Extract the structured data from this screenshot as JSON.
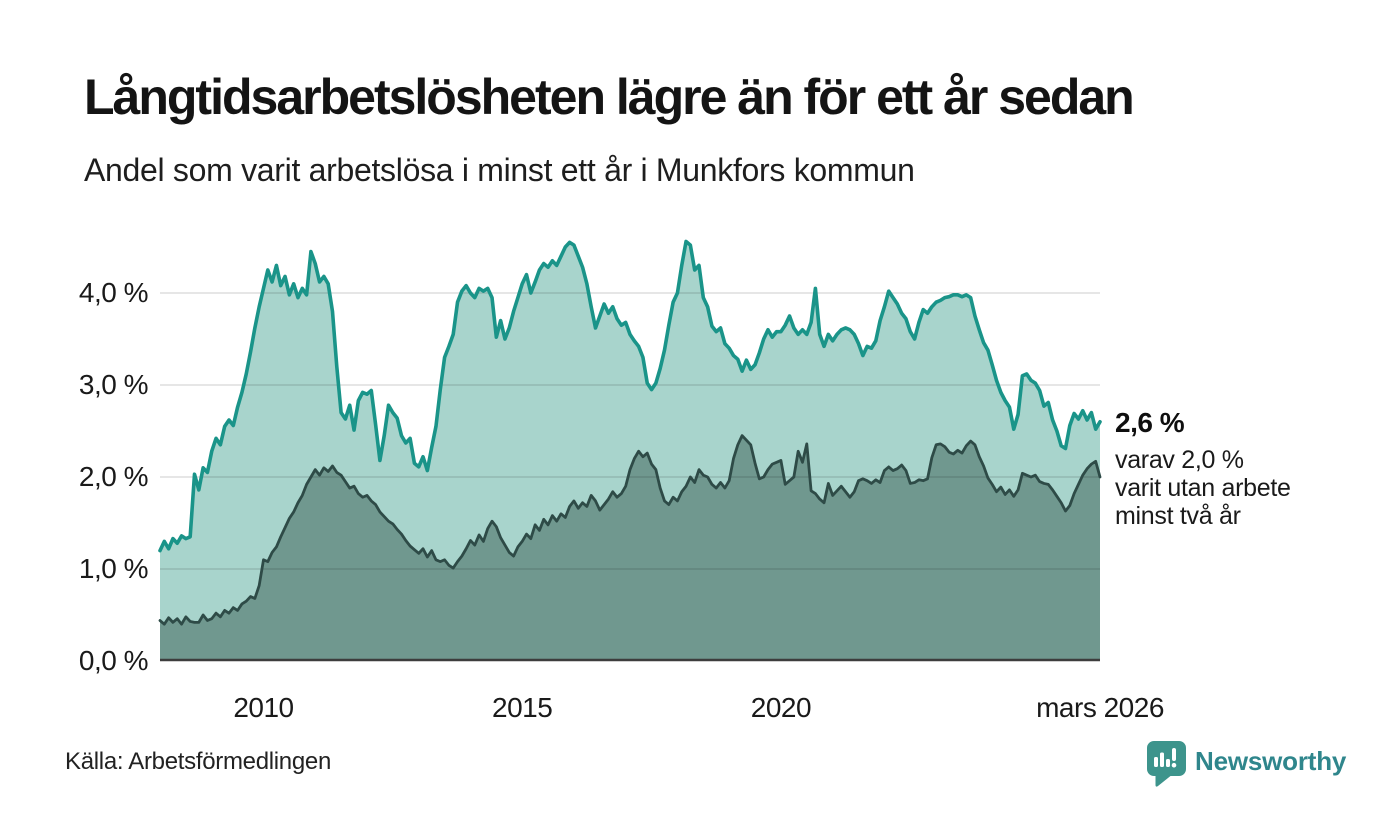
{
  "header": {
    "title": "Långtidsarbetslösheten lägre än för ett år sedan",
    "subtitle": "Andel som varit arbetslösa i minst ett år i Munkfors kommun"
  },
  "annotation": {
    "value": "2,6 %",
    "line1": "varav 2,0 %",
    "line2": "varit utan arbete",
    "line3": "minst två år"
  },
  "footer": {
    "source": "Källa: Arbetsförmedlingen",
    "brand": "Newsworthy",
    "brand_color": "#2f868c",
    "brand_icon": "newsworthy-speech-bubble-bar-chart-icon",
    "brand_icon_color": "#3d948c"
  },
  "chart_data": {
    "type": "area",
    "title": "Långtidsarbetslösheten lägre än för ett år sedan",
    "subtitle": "Andel som varit arbetslösa i minst ett år i Munkfors kommun",
    "unit": "%",
    "x_start": "2008-01",
    "x_end": "2026-03",
    "x_step": "monthly",
    "grid": true,
    "ylim": [
      0,
      4.7
    ],
    "y_ticks": [
      "0,0 %",
      "1,0 %",
      "2,0 %",
      "3,0 %",
      "4,0 %"
    ],
    "x_ticks": [
      {
        "label": "2010",
        "month_index": 24
      },
      {
        "label": "2015",
        "month_index": 84
      },
      {
        "label": "2020",
        "month_index": 144
      },
      {
        "label": "mars 2026",
        "month_index": 218
      }
    ],
    "grid_color": "rgba(0,0,0,0.13)",
    "baseline_color": "#3d3d3d",
    "series": [
      {
        "name": "Arbetslösa minst ett år",
        "line_color": "#1a9489",
        "fill_color": "#a8d4cc",
        "end_value": 2.6,
        "values": [
          1.2,
          1.3,
          1.22,
          1.33,
          1.28,
          1.36,
          1.33,
          1.35,
          2.03,
          1.86,
          2.1,
          2.05,
          2.28,
          2.42,
          2.35,
          2.55,
          2.62,
          2.56,
          2.76,
          2.92,
          3.12,
          3.36,
          3.62,
          3.85,
          4.05,
          4.25,
          4.12,
          4.3,
          4.08,
          4.18,
          3.98,
          4.1,
          3.95,
          4.05,
          3.98,
          4.45,
          4.32,
          4.12,
          4.18,
          4.1,
          3.8,
          3.2,
          2.7,
          2.63,
          2.78,
          2.51,
          2.83,
          2.92,
          2.9,
          2.94,
          2.57,
          2.18,
          2.45,
          2.78,
          2.7,
          2.64,
          2.45,
          2.37,
          2.42,
          2.15,
          2.11,
          2.22,
          2.07,
          2.32,
          2.55,
          2.95,
          3.3,
          3.42,
          3.55,
          3.9,
          4.02,
          4.08,
          4.0,
          3.95,
          4.05,
          4.02,
          4.05,
          3.95,
          3.52,
          3.7,
          3.5,
          3.62,
          3.8,
          3.95,
          4.1,
          4.2,
          4.0,
          4.12,
          4.25,
          4.32,
          4.28,
          4.35,
          4.3,
          4.4,
          4.5,
          4.55,
          4.52,
          4.4,
          4.28,
          4.1,
          3.85,
          3.62,
          3.75,
          3.88,
          3.78,
          3.85,
          3.72,
          3.65,
          3.68,
          3.55,
          3.48,
          3.42,
          3.3,
          3.02,
          2.95,
          3.02,
          3.18,
          3.38,
          3.65,
          3.9,
          4.0,
          4.3,
          4.56,
          4.52,
          4.25,
          4.3,
          3.95,
          3.85,
          3.64,
          3.58,
          3.62,
          3.45,
          3.4,
          3.32,
          3.28,
          3.15,
          3.27,
          3.17,
          3.22,
          3.35,
          3.5,
          3.6,
          3.52,
          3.58,
          3.58,
          3.65,
          3.75,
          3.62,
          3.55,
          3.6,
          3.55,
          3.68,
          4.05,
          3.55,
          3.42,
          3.55,
          3.48,
          3.55,
          3.6,
          3.62,
          3.6,
          3.55,
          3.45,
          3.32,
          3.42,
          3.4,
          3.48,
          3.7,
          3.85,
          4.02,
          3.95,
          3.88,
          3.78,
          3.72,
          3.58,
          3.5,
          3.68,
          3.82,
          3.78,
          3.85,
          3.9,
          3.92,
          3.95,
          3.96,
          3.98,
          3.98,
          3.96,
          3.98,
          3.95,
          3.75,
          3.6,
          3.46,
          3.38,
          3.22,
          3.05,
          2.92,
          2.83,
          2.76,
          2.52,
          2.68,
          3.1,
          3.12,
          3.05,
          3.02,
          2.94,
          2.77,
          2.81,
          2.62,
          2.5,
          2.34,
          2.31,
          2.56,
          2.69,
          2.63,
          2.72,
          2.62,
          2.7,
          2.52,
          2.6
        ]
      },
      {
        "name": "Varav utan arbete minst två år",
        "line_color": "#2e4b47",
        "fill_color": "#70988f",
        "end_value": 2.0,
        "values": [
          0.44,
          0.4,
          0.47,
          0.42,
          0.46,
          0.4,
          0.48,
          0.43,
          0.42,
          0.42,
          0.5,
          0.44,
          0.46,
          0.52,
          0.48,
          0.55,
          0.52,
          0.58,
          0.55,
          0.62,
          0.65,
          0.7,
          0.68,
          0.82,
          1.1,
          1.08,
          1.18,
          1.24,
          1.35,
          1.45,
          1.55,
          1.62,
          1.72,
          1.8,
          1.92,
          2.0,
          2.08,
          2.02,
          2.1,
          2.06,
          2.12,
          2.05,
          2.02,
          1.95,
          1.88,
          1.9,
          1.82,
          1.78,
          1.8,
          1.74,
          1.7,
          1.62,
          1.57,
          1.52,
          1.49,
          1.43,
          1.38,
          1.31,
          1.25,
          1.21,
          1.17,
          1.22,
          1.13,
          1.2,
          1.1,
          1.08,
          1.1,
          1.04,
          1.01,
          1.08,
          1.14,
          1.22,
          1.31,
          1.26,
          1.37,
          1.3,
          1.44,
          1.52,
          1.46,
          1.34,
          1.26,
          1.18,
          1.14,
          1.24,
          1.3,
          1.38,
          1.33,
          1.48,
          1.42,
          1.54,
          1.48,
          1.58,
          1.52,
          1.6,
          1.56,
          1.68,
          1.74,
          1.66,
          1.72,
          1.68,
          1.8,
          1.74,
          1.64,
          1.7,
          1.76,
          1.84,
          1.78,
          1.82,
          1.9,
          2.08,
          2.2,
          2.28,
          2.22,
          2.26,
          2.14,
          2.08,
          1.88,
          1.74,
          1.7,
          1.78,
          1.74,
          1.84,
          1.9,
          2.0,
          1.94,
          2.08,
          2.02,
          2.0,
          1.92,
          1.88,
          1.94,
          1.88,
          1.96,
          2.2,
          2.35,
          2.45,
          2.4,
          2.35,
          2.15,
          1.98,
          2.0,
          2.08,
          2.14,
          2.16,
          2.18,
          1.92,
          1.96,
          2.0,
          2.28,
          2.16,
          2.36,
          1.85,
          1.82,
          1.76,
          1.72,
          1.93,
          1.8,
          1.85,
          1.9,
          1.84,
          1.78,
          1.84,
          1.96,
          1.98,
          1.96,
          1.93,
          1.97,
          1.94,
          2.07,
          2.11,
          2.07,
          2.09,
          2.13,
          2.07,
          1.93,
          1.94,
          1.97,
          1.96,
          1.98,
          2.21,
          2.35,
          2.36,
          2.33,
          2.27,
          2.25,
          2.29,
          2.26,
          2.34,
          2.39,
          2.35,
          2.22,
          2.12,
          1.99,
          1.92,
          1.84,
          1.89,
          1.81,
          1.86,
          1.79,
          1.86,
          2.04,
          2.02,
          2.0,
          2.02,
          1.95,
          1.93,
          1.92,
          1.86,
          1.79,
          1.72,
          1.63,
          1.69,
          1.82,
          1.92,
          2.02,
          2.09,
          2.14,
          2.17,
          2.0
        ]
      }
    ]
  }
}
